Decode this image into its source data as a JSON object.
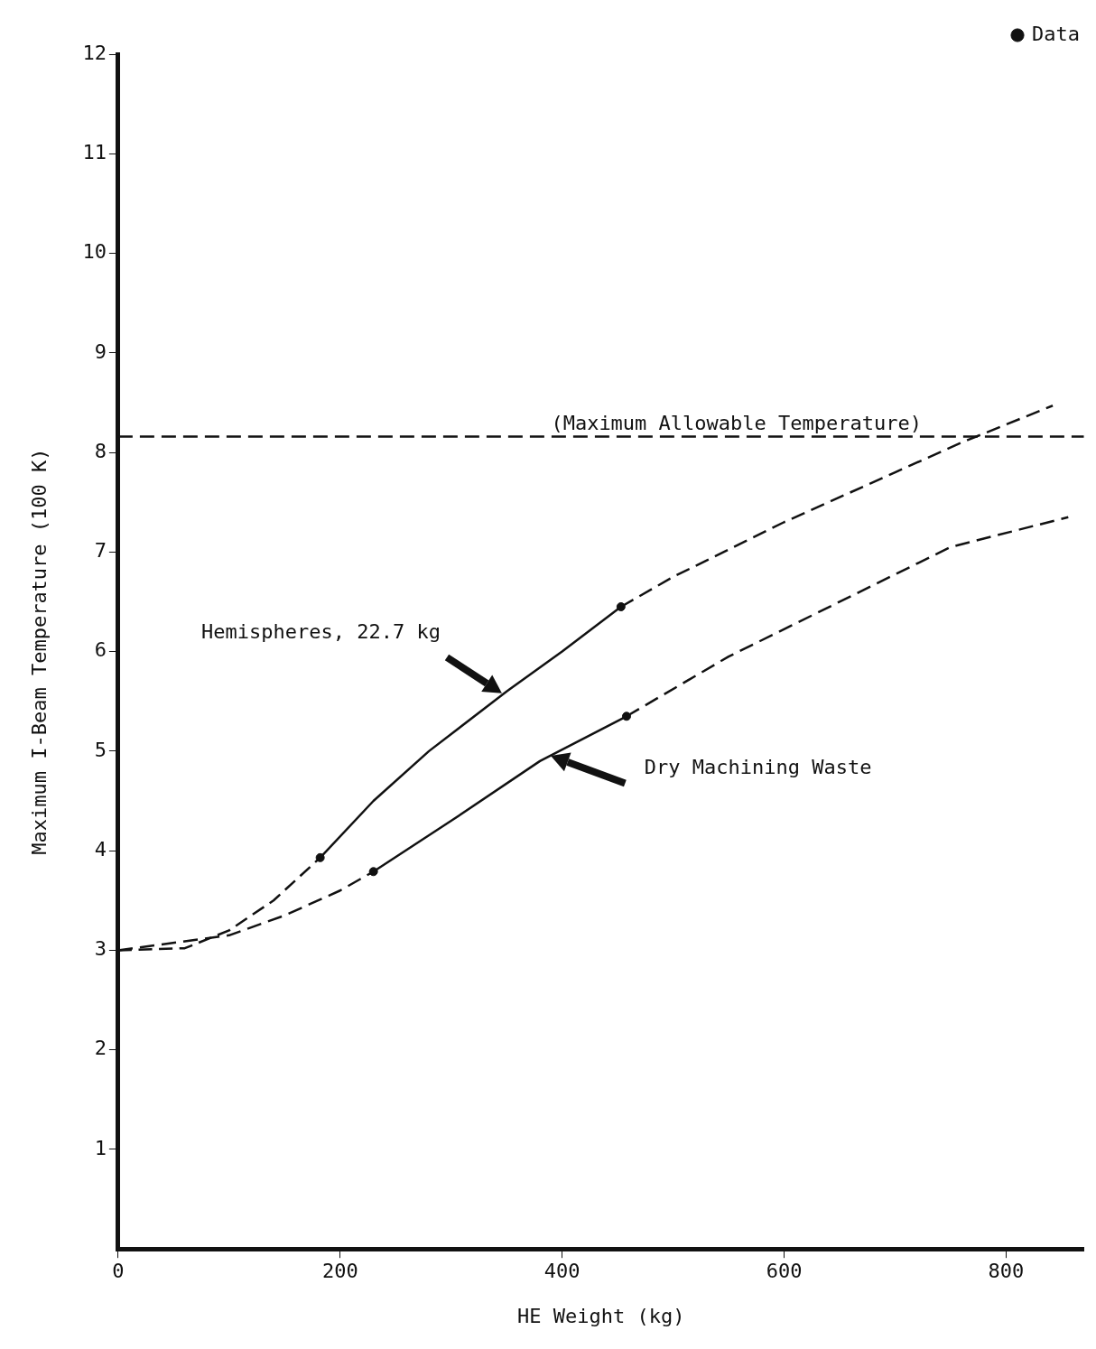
{
  "chart_data": {
    "type": "line",
    "xlabel": "HE Weight (kg)",
    "ylabel": "Maximum I-Beam Temperature (100 K)",
    "xlim": [
      0,
      870
    ],
    "xticks": [
      0,
      200,
      400,
      600,
      800
    ],
    "ylim": [
      0,
      12
    ],
    "yticks": [
      1,
      2,
      3,
      4,
      5,
      6,
      7,
      8,
      9,
      10,
      11,
      12
    ],
    "grid": false,
    "legend": "top right",
    "series": [
      {
        "color": "#111111",
        "line_style": "dashed",
        "x": [
          0,
          60,
          100,
          140,
          182
        ],
        "values": [
          3.0,
          3.02,
          3.2,
          3.5,
          3.93
        ]
      },
      {
        "color": "#111111",
        "line_style": "solid",
        "x": [
          182,
          230,
          280,
          350,
          400,
          453
        ],
        "values": [
          3.93,
          4.5,
          5.0,
          5.6,
          6.0,
          6.45
        ]
      },
      {
        "color": "#111111",
        "line_style": "dashed",
        "x": [
          453,
          500,
          600,
          700,
          760,
          842
        ],
        "values": [
          6.45,
          6.75,
          7.3,
          7.8,
          8.1,
          8.47
        ]
      },
      {
        "color": "#111111",
        "line_style": "dashed",
        "x": [
          0,
          100,
          150,
          200,
          230
        ],
        "values": [
          3.0,
          3.15,
          3.35,
          3.6,
          3.79
        ]
      },
      {
        "color": "#111111",
        "line_style": "solid",
        "x": [
          230,
          300,
          380,
          458
        ],
        "values": [
          3.79,
          4.3,
          4.9,
          5.35
        ]
      },
      {
        "color": "#111111",
        "line_style": "dashed",
        "x": [
          458,
          550,
          650,
          750,
          856
        ],
        "values": [
          5.35,
          5.95,
          6.5,
          7.05,
          7.35
        ]
      },
      {
        "type": "scatter",
        "name": "Data",
        "color": "#111111",
        "marker": "circle",
        "x": [
          182,
          453,
          230,
          458
        ],
        "values": [
          3.93,
          6.45,
          3.79,
          5.35
        ]
      }
    ],
    "ref_lines": [
      {
        "axis": "y",
        "value": 8.16,
        "label": "(Maximum Allowable Temperature)",
        "line_style": "dashed",
        "color": "#111111"
      }
    ],
    "annotations": [
      "Hemispheres, 22.7 kg",
      "Dry Machining Waste"
    ]
  }
}
